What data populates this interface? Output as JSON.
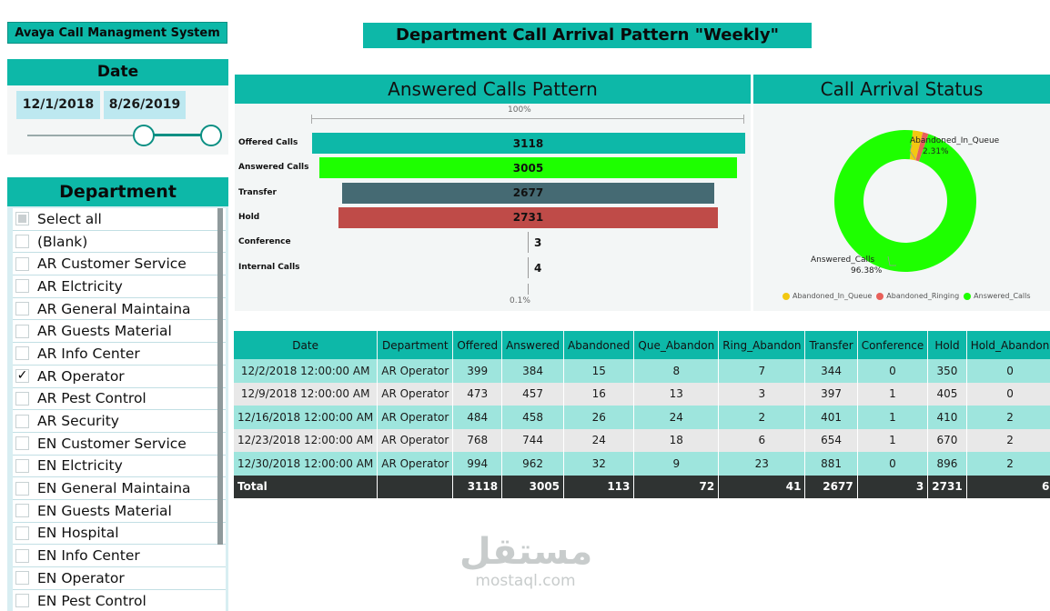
{
  "app_title": "Avaya Call Managment System",
  "main_title": "Department Call Arrival Pattern  \"Weekly\"",
  "date_slicer": {
    "header": "Date",
    "start": "12/1/2018",
    "end": "8/26/2019"
  },
  "department_slicer": {
    "header": "Department",
    "items": [
      {
        "label": "Select all",
        "state": "partial"
      },
      {
        "label": "(Blank)",
        "state": "unchecked"
      },
      {
        "label": "AR Customer Service",
        "state": "unchecked"
      },
      {
        "label": "AR Elctricity",
        "state": "unchecked"
      },
      {
        "label": "AR General Maintaina",
        "state": "unchecked"
      },
      {
        "label": "AR Guests Material",
        "state": "unchecked"
      },
      {
        "label": "AR Info Center",
        "state": "unchecked"
      },
      {
        "label": "AR Operator",
        "state": "checked"
      },
      {
        "label": "AR Pest Control",
        "state": "unchecked"
      },
      {
        "label": "AR Security",
        "state": "unchecked"
      },
      {
        "label": "EN Customer Service",
        "state": "unchecked"
      },
      {
        "label": "EN Elctricity",
        "state": "unchecked"
      },
      {
        "label": "EN General Maintaina",
        "state": "unchecked"
      },
      {
        "label": "EN Guests Material",
        "state": "unchecked"
      },
      {
        "label": "EN Hospital",
        "state": "unchecked"
      },
      {
        "label": "EN Info Center",
        "state": "unchecked"
      },
      {
        "label": "EN Operator",
        "state": "unchecked"
      },
      {
        "label": "EN Pest Control",
        "state": "unchecked"
      }
    ],
    "check_glyph": "✓"
  },
  "funnel": {
    "header": "Answered Calls Pattern",
    "top_pct": "100%",
    "bottom_pct": "0.1%",
    "rows": [
      {
        "label": "Offered Calls",
        "value": 3118,
        "value_label": "3118",
        "color": "#0db8a8"
      },
      {
        "label": "Answered Calls",
        "value": 3005,
        "value_label": "3005",
        "color": "#1eff00"
      },
      {
        "label": "Transfer",
        "value": 2677,
        "value_label": "2677",
        "color": "#456a73"
      },
      {
        "label": "Hold",
        "value": 2731,
        "value_label": "2731",
        "color": "#bf4b48"
      },
      {
        "label": "Conference",
        "value": 3,
        "value_label": "3",
        "color": "#888888"
      },
      {
        "label": "Internal Calls",
        "value": 4,
        "value_label": "4",
        "color": "#888888"
      }
    ]
  },
  "donut": {
    "header": "Call  Arrival Status",
    "slices": [
      {
        "name": "Abandoned_In_Queue",
        "pct": 2.31,
        "color": "#f2c811"
      },
      {
        "name": "Abandoned_Ringing",
        "pct": 1.31,
        "color": "#e8605a"
      },
      {
        "name": "Answered_Calls",
        "pct": 96.38,
        "color": "#1eff00"
      }
    ],
    "label_top_name": "Abandoned_In_Queue",
    "label_top_pct": "2.31%",
    "label_bottom_name": "Answered_Calls",
    "label_bottom_pct": "96.38%",
    "legend": [
      {
        "label": "Abandoned_In_Queue",
        "color": "#f2c811"
      },
      {
        "label": "Abandoned_Ringing",
        "color": "#e8605a"
      },
      {
        "label": "Answered_Calls",
        "color": "#1eff00"
      }
    ]
  },
  "chart_data": [
    {
      "type": "bar",
      "title": "Answered Calls Pattern",
      "categories": [
        "Offered Calls",
        "Answered Calls",
        "Transfer",
        "Hold",
        "Conference",
        "Internal Calls"
      ],
      "values": [
        3118,
        3005,
        2677,
        2731,
        3,
        4
      ]
    },
    {
      "type": "pie",
      "title": "Call  Arrival Status",
      "categories": [
        "Abandoned_In_Queue",
        "Abandoned_Ringing",
        "Answered_Calls"
      ],
      "values": [
        2.31,
        1.31,
        96.38
      ]
    }
  ],
  "table": {
    "columns": [
      "Date",
      "Department",
      "Offered",
      "Answered",
      "Abandoned",
      "Que_Abandon",
      "Ring_Abandon",
      "Transfer",
      "Conference",
      "Hold",
      "Hold_Abandon"
    ],
    "rows": [
      [
        "12/2/2018 12:00:00 AM",
        "AR Operator",
        "399",
        "384",
        "15",
        "8",
        "7",
        "344",
        "0",
        "350",
        "0"
      ],
      [
        "12/9/2018 12:00:00 AM",
        "AR Operator",
        "473",
        "457",
        "16",
        "13",
        "3",
        "397",
        "1",
        "405",
        "0"
      ],
      [
        "12/16/2018 12:00:00 AM",
        "AR Operator",
        "484",
        "458",
        "26",
        "24",
        "2",
        "401",
        "1",
        "410",
        "2"
      ],
      [
        "12/23/2018 12:00:00 AM",
        "AR Operator",
        "768",
        "744",
        "24",
        "18",
        "6",
        "654",
        "1",
        "670",
        "2"
      ],
      [
        "12/30/2018 12:00:00 AM",
        "AR Operator",
        "994",
        "962",
        "32",
        "9",
        "23",
        "881",
        "0",
        "896",
        "2"
      ]
    ],
    "total": [
      "Total",
      "",
      "3118",
      "3005",
      "113",
      "72",
      "41",
      "2677",
      "3",
      "2731",
      "6"
    ]
  },
  "watermark": {
    "arabic": "مستقل",
    "latin": "mostaql.com"
  }
}
